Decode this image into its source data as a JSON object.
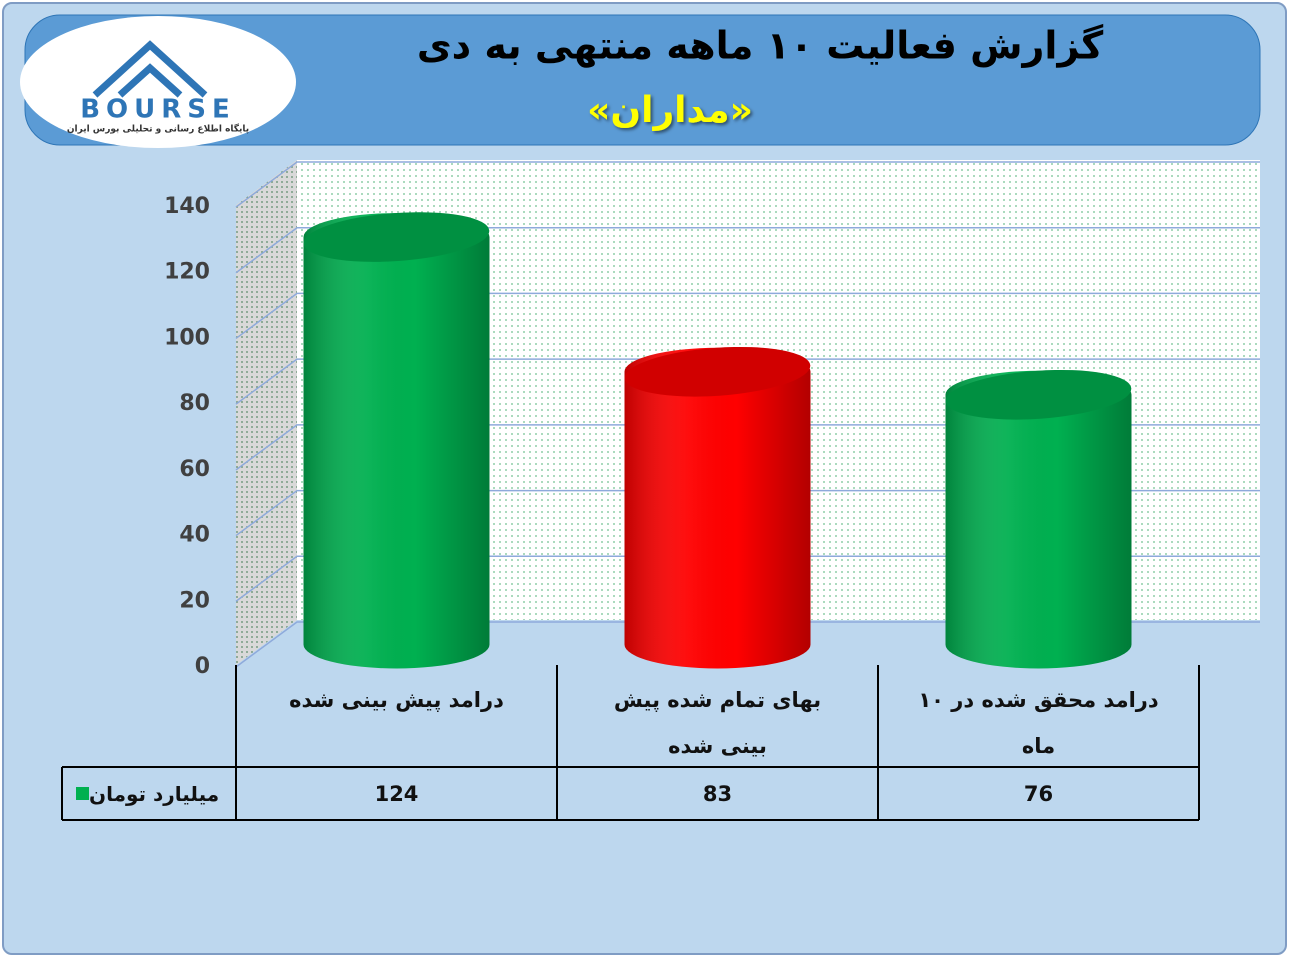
{
  "logo": {
    "name": "BOURSE",
    "tagline": "پایگاه اطلاع رسانی و تحلیلی بورس ایران"
  },
  "chart_data": {
    "type": "cylinder",
    "title": "گزارش فعالیت ۱۰ ماهه منتهی به دی",
    "subtitle": "«مداران»",
    "categories": [
      "درامد پیش بینی شده",
      "بهای تمام شده پیش بینی شده",
      "درامد محقق شده در ۱۰ ماه"
    ],
    "series": [
      {
        "name": "میلیارد تومان",
        "color": "#00b050",
        "colors": [
          "#00b050",
          "#ff0000",
          "#00b050"
        ],
        "values": [
          124,
          83,
          76
        ]
      }
    ],
    "ylim": [
      0,
      140
    ],
    "yticks": [
      0,
      20,
      40,
      60,
      80,
      100,
      120,
      140
    ],
    "grid": true
  }
}
